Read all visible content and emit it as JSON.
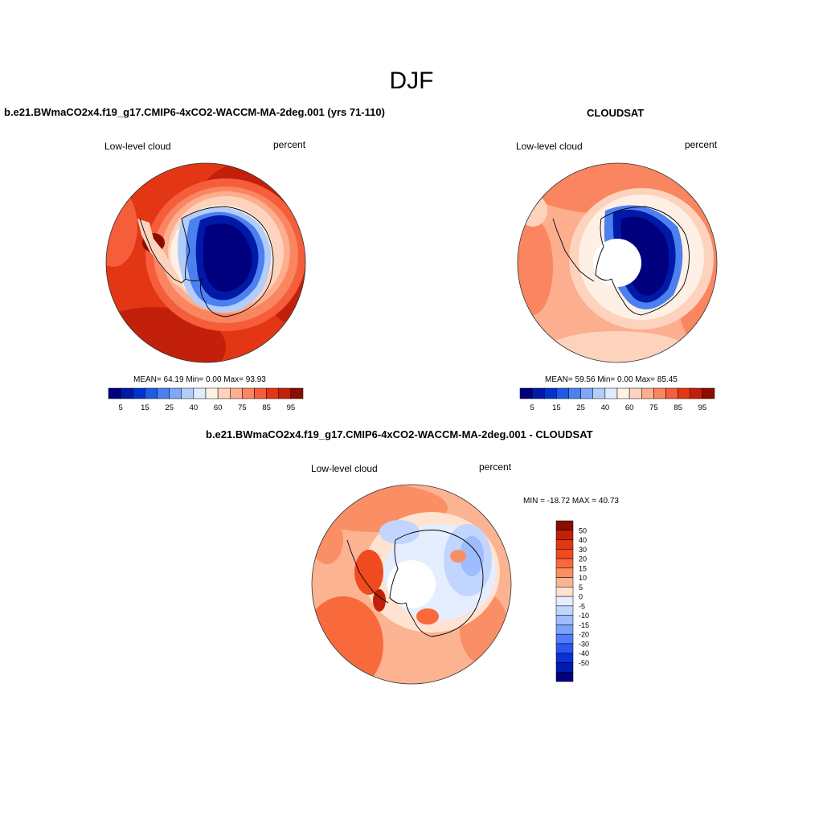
{
  "figure": {
    "title": "DJF"
  },
  "panels": [
    {
      "id": "model",
      "title": "b.e21.BWmaCO2x4.f19_g17.CMIP6-4xCO2-WACCM-MA-2deg.001 (yrs 71-110)",
      "left_label": "Low-level cloud",
      "right_label": "percent",
      "stats": "MEAN=  64.19  Min=   0.00  Max=  93.93",
      "mean": 64.19,
      "min": 0.0,
      "max": 93.93,
      "colorbar": {
        "orientation": "horizontal",
        "colors": [
          "#00007f",
          "#0019a6",
          "#0033cc",
          "#1f5ae6",
          "#4c80f0",
          "#7ea7f7",
          "#b3cdfa",
          "#dfeaff",
          "#fff0e6",
          "#fdd3bd",
          "#fcae8f",
          "#f98660",
          "#f65d3a",
          "#e23614",
          "#c2200a",
          "#8a0d00"
        ],
        "tick_labels": [
          "5",
          "15",
          "25",
          "40",
          "60",
          "75",
          "85",
          "95"
        ]
      }
    },
    {
      "id": "obs",
      "title": "CLOUDSAT",
      "left_label": "Low-level cloud",
      "right_label": "percent",
      "stats": "MEAN=  59.56  Min=   0.00  Max=  85.45",
      "mean": 59.56,
      "min": 0.0,
      "max": 85.45,
      "colorbar": {
        "orientation": "horizontal",
        "colors": [
          "#00007f",
          "#0019a6",
          "#0033cc",
          "#1f5ae6",
          "#4c80f0",
          "#7ea7f7",
          "#b3cdfa",
          "#dfeaff",
          "#fff0e6",
          "#fdd3bd",
          "#fcae8f",
          "#f98660",
          "#f65d3a",
          "#e23614",
          "#c2200a",
          "#8a0d00"
        ],
        "tick_labels": [
          "5",
          "15",
          "25",
          "40",
          "60",
          "75",
          "85",
          "95"
        ]
      }
    },
    {
      "id": "diff",
      "title": "b.e21.BWmaCO2x4.f19_g17.CMIP6-4xCO2-WACCM-MA-2deg.001 - CLOUDSAT",
      "left_label": "Low-level cloud",
      "right_label": "percent",
      "stats": "MIN = -18.72 MAX =  40.73",
      "min": -18.72,
      "max": 40.73,
      "colorbar": {
        "orientation": "vertical",
        "colors": [
          "#8a0d00",
          "#c2200a",
          "#e23614",
          "#f04a20",
          "#f86a3c",
          "#fa8e65",
          "#fcb392",
          "#ffe2cf",
          "#e4eeff",
          "#c1d5ff",
          "#9ebcff",
          "#7aa3ff",
          "#4f7dff",
          "#2b57f0",
          "#0d2fd6",
          "#001bb0",
          "#00007f"
        ],
        "tick_labels": [
          "50",
          "40",
          "30",
          "20",
          "15",
          "10",
          "5",
          "0",
          "-5",
          "-10",
          "-15",
          "-20",
          "-30",
          "-40",
          "-50"
        ]
      }
    }
  ]
}
